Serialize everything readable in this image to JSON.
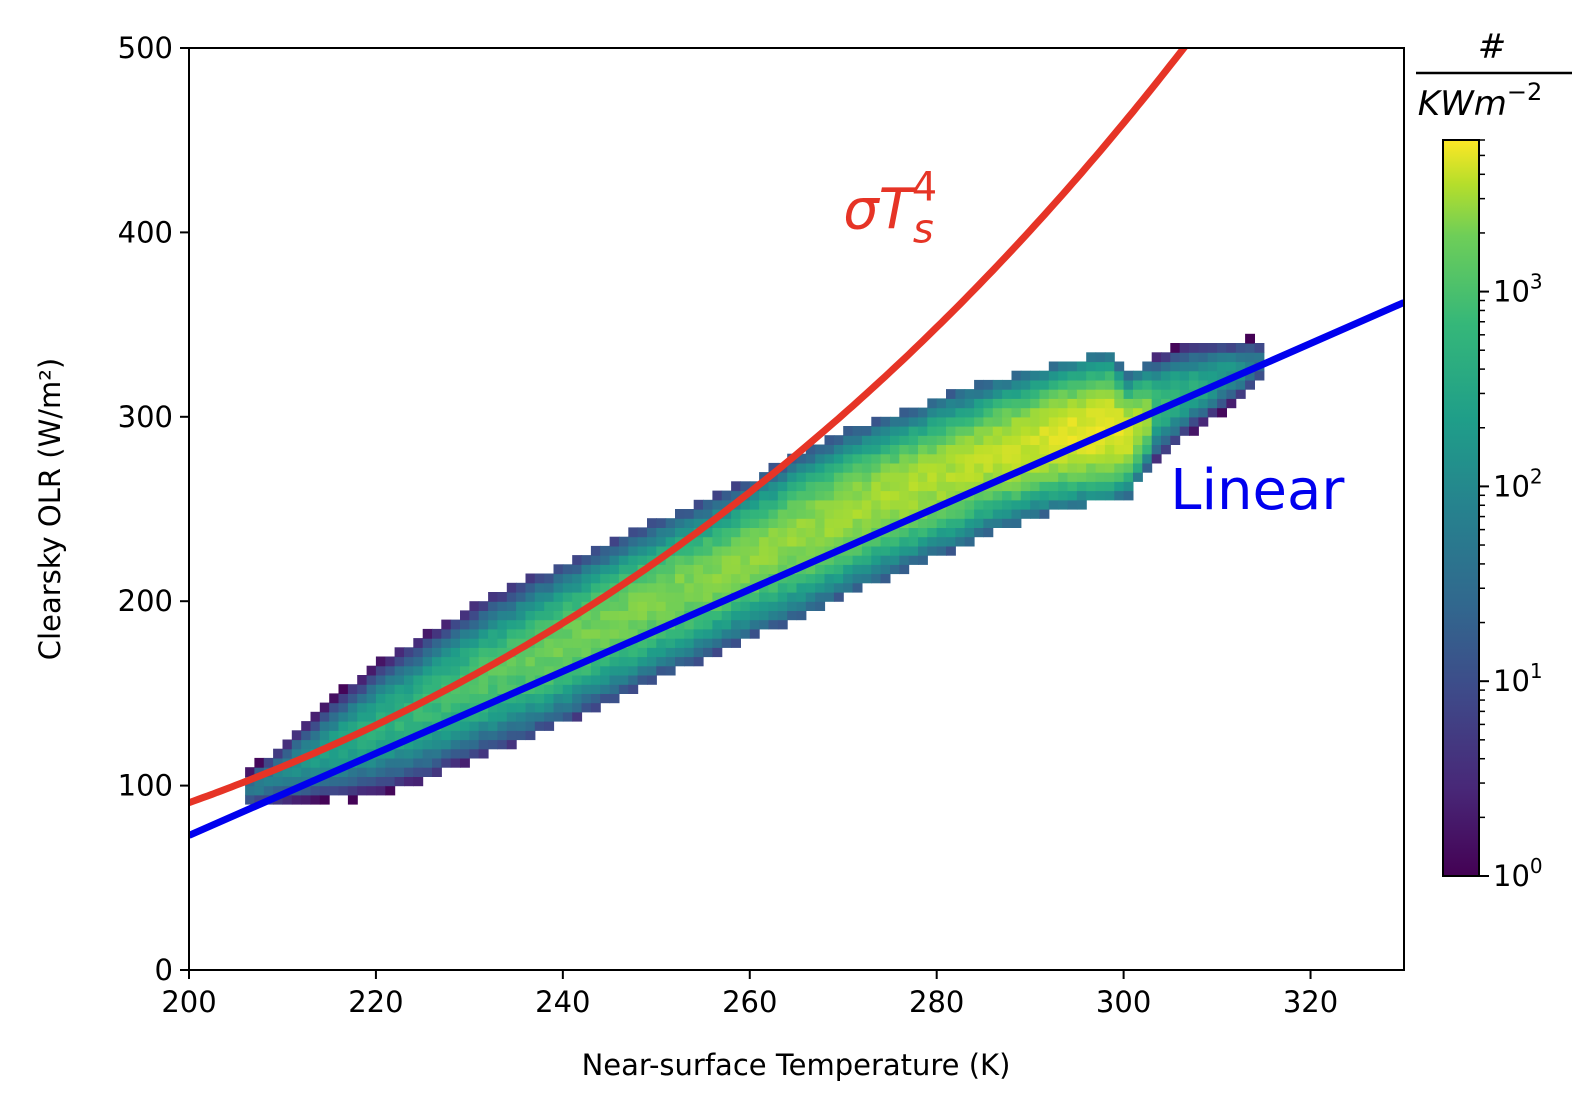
{
  "chart_data": {
    "type": "heatmap",
    "xlabel": "Near-surface Temperature (K)",
    "ylabel": "Clearsky OLR (W/m²)",
    "xlim": [
      200,
      330
    ],
    "ylim": [
      0,
      500
    ],
    "x_ticks": [
      200,
      220,
      240,
      260,
      280,
      300,
      320
    ],
    "y_ticks": [
      0,
      100,
      200,
      300,
      400,
      500
    ],
    "grid": false,
    "histogram": {
      "description_kind": "2D histogram density",
      "color_scale": "viridis",
      "log_color": true,
      "bin_width_K": 1,
      "bin_width_Wm2": 5,
      "ridge": [
        {
          "T": 206,
          "olr_center": 98,
          "spread": 7,
          "peak_count": 30
        },
        {
          "T": 210,
          "olr_center": 108,
          "spread": 11,
          "peak_count": 60
        },
        {
          "T": 215,
          "olr_center": 120,
          "spread": 16,
          "peak_count": 150
        },
        {
          "T": 220,
          "olr_center": 132,
          "spread": 20,
          "peak_count": 250
        },
        {
          "T": 225,
          "olr_center": 143,
          "spread": 22,
          "peak_count": 350
        },
        {
          "T": 230,
          "olr_center": 156,
          "spread": 23,
          "peak_count": 500
        },
        {
          "T": 235,
          "olr_center": 167,
          "spread": 24,
          "peak_count": 700
        },
        {
          "T": 240,
          "olr_center": 178,
          "spread": 24,
          "peak_count": 900
        },
        {
          "T": 245,
          "olr_center": 190,
          "spread": 24,
          "peak_count": 1000
        },
        {
          "T": 250,
          "olr_center": 202,
          "spread": 24,
          "peak_count": 1100
        },
        {
          "T": 255,
          "olr_center": 212,
          "spread": 24,
          "peak_count": 1200
        },
        {
          "T": 260,
          "olr_center": 224,
          "spread": 24,
          "peak_count": 1300
        },
        {
          "T": 265,
          "olr_center": 236,
          "spread": 25,
          "peak_count": 1500
        },
        {
          "T": 270,
          "olr_center": 248,
          "spread": 25,
          "peak_count": 1700
        },
        {
          "T": 275,
          "olr_center": 258,
          "spread": 24,
          "peak_count": 1900
        },
        {
          "T": 280,
          "olr_center": 268,
          "spread": 24,
          "peak_count": 2100
        },
        {
          "T": 285,
          "olr_center": 278,
          "spread": 23,
          "peak_count": 2500
        },
        {
          "T": 290,
          "olr_center": 286,
          "spread": 22,
          "peak_count": 3200
        },
        {
          "T": 295,
          "olr_center": 292,
          "spread": 22,
          "peak_count": 4500
        },
        {
          "T": 298,
          "olr_center": 294,
          "spread": 22,
          "peak_count": 5000
        },
        {
          "T": 300,
          "olr_center": 290,
          "spread": 18,
          "peak_count": 3500
        },
        {
          "T": 303,
          "olr_center": 305,
          "spread": 16,
          "peak_count": 400
        },
        {
          "T": 306,
          "olr_center": 314,
          "spread": 14,
          "peak_count": 250
        },
        {
          "T": 309,
          "olr_center": 320,
          "spread": 12,
          "peak_count": 150
        },
        {
          "T": 312,
          "olr_center": 326,
          "spread": 10,
          "peak_count": 80
        },
        {
          "T": 314,
          "olr_center": 330,
          "spread": 8,
          "peak_count": 30
        }
      ]
    },
    "series": [
      {
        "name": "σT_s^4",
        "type": "line",
        "formula": "sigma*T^4",
        "sigma": 5.67e-08,
        "color": "#e63426"
      },
      {
        "name": "Linear",
        "type": "line",
        "color": "#0000ee",
        "x": [
          200,
          330
        ],
        "y": [
          73,
          362
        ]
      }
    ],
    "annotations": [
      {
        "text_main": "σT",
        "sub": "s",
        "sup": "4",
        "at_x": 270,
        "at_y": 402,
        "color": "#e63426"
      },
      {
        "text_main": "Linear",
        "at_x": 305,
        "at_y": 250,
        "color": "#0000ee"
      }
    ],
    "colorbar": {
      "title_numerator": "#",
      "title_denominator": "KWm",
      "title_denominator_exponent": "−2",
      "scale": "log",
      "range": [
        1,
        6000
      ],
      "tick_values": [
        1,
        10,
        100,
        1000
      ],
      "tick_labels": [
        {
          "base": "10",
          "exp": "0"
        },
        {
          "base": "10",
          "exp": "1"
        },
        {
          "base": "10",
          "exp": "2"
        },
        {
          "base": "10",
          "exp": "3"
        }
      ]
    }
  }
}
